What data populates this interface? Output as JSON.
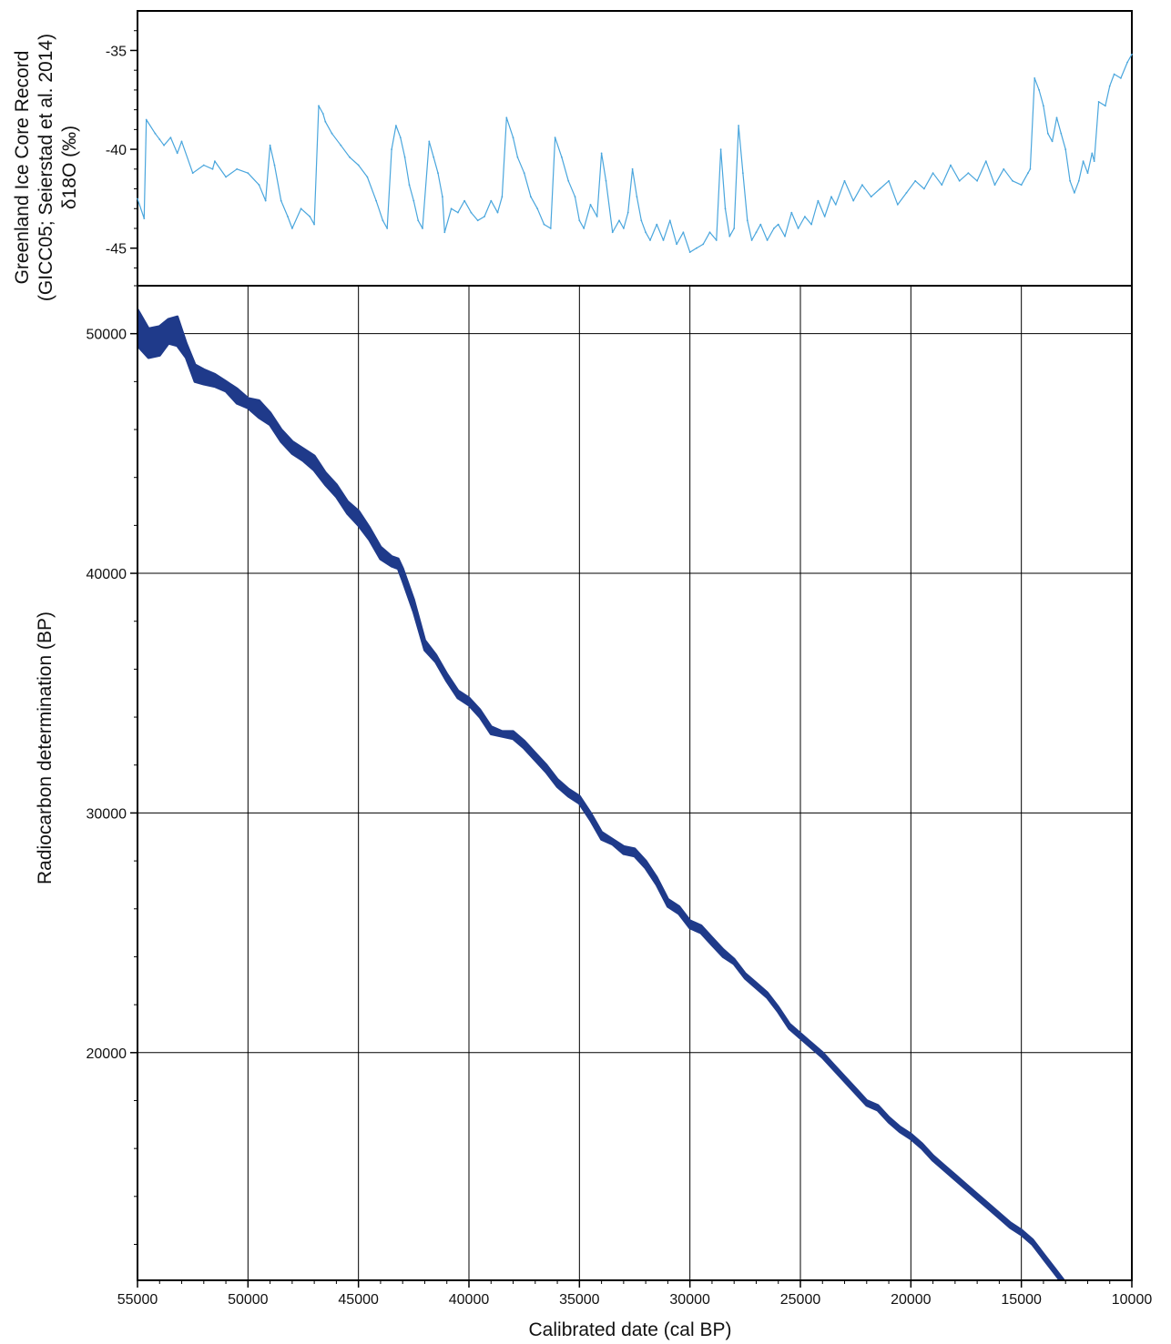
{
  "colors": {
    "ice_core_line": "#4aa6dd",
    "calibration_band": "#1f3a8a",
    "frame": "#000000",
    "grid": "#000000"
  },
  "chart_data": [
    {
      "type": "line",
      "panel": "top",
      "ylabel_lines": [
        "Greenland Ice Core Record",
        "(GICC05; Seierstad et al. 2014)",
        "δ18O (‰)"
      ],
      "xlim": [
        55000,
        10000
      ],
      "ylim": [
        -46.9,
        -33.0
      ],
      "y_ticks": [
        -35,
        -40,
        -45
      ],
      "y_tick_labels": [
        "-35",
        "-40",
        "-45"
      ],
      "grid": false,
      "series": [
        {
          "x": [
            55000,
            54700,
            54600,
            54200,
            54000,
            53800,
            53500,
            53200,
            53000,
            52500,
            52000,
            51600,
            51500,
            51000,
            50500,
            50000,
            49500,
            49200,
            49000,
            48800,
            48500,
            48200,
            48000,
            47600,
            47200,
            47000,
            46800,
            46600,
            46500,
            46200,
            45800,
            45400,
            45000,
            44600,
            44200,
            43900,
            43700,
            43500,
            43300,
            43100,
            42900,
            42700,
            42500,
            42300,
            42100,
            41800,
            41600,
            41400,
            41200,
            41100,
            40800,
            40500,
            40200,
            39900,
            39600,
            39300,
            39000,
            38700,
            38500,
            38300,
            38000,
            37800,
            37500,
            37200,
            36900,
            36600,
            36300,
            36100,
            35800,
            35500,
            35200,
            35000,
            34800,
            34500,
            34200,
            34000,
            33800,
            33500,
            33200,
            33000,
            32800,
            32600,
            32400,
            32200,
            32000,
            31800,
            31500,
            31200,
            30900,
            30600,
            30300,
            30000,
            29700,
            29400,
            29100,
            28800,
            28600,
            28400,
            28200,
            28000,
            27800,
            27600,
            27400,
            27200,
            27000,
            26800,
            26500,
            26200,
            26000,
            25700,
            25400,
            25100,
            24800,
            24500,
            24200,
            23900,
            23600,
            23400,
            23000,
            22600,
            22200,
            21800,
            21400,
            21000,
            20600,
            20200,
            19800,
            19400,
            19000,
            18600,
            18200,
            17800,
            17400,
            17000,
            16600,
            16200,
            15800,
            15400,
            15000,
            14700,
            14600,
            14400,
            14200,
            14000,
            13800,
            13600,
            13400,
            13200,
            13000,
            12800,
            12600,
            12400,
            12200,
            12000,
            11800,
            11700,
            11500,
            11200,
            11000,
            10800,
            10500,
            10200,
            10000
          ],
          "values": [
            -42.5,
            -43.5,
            -38.5,
            -39.2,
            -39.5,
            -39.8,
            -39.4,
            -40.2,
            -39.6,
            -41.2,
            -40.8,
            -41.0,
            -40.6,
            -41.4,
            -41.0,
            -41.2,
            -41.8,
            -42.6,
            -39.8,
            -40.8,
            -42.6,
            -43.4,
            -44.0,
            -43.0,
            -43.4,
            -43.8,
            -37.8,
            -38.2,
            -38.6,
            -39.2,
            -39.8,
            -40.4,
            -40.8,
            -41.4,
            -42.6,
            -43.6,
            -44.0,
            -40.0,
            -38.8,
            -39.4,
            -40.4,
            -41.8,
            -42.6,
            -43.6,
            -44.0,
            -39.6,
            -40.4,
            -41.2,
            -42.4,
            -44.2,
            -43.0,
            -43.2,
            -42.6,
            -43.2,
            -43.6,
            -43.4,
            -42.6,
            -43.2,
            -42.4,
            -38.4,
            -39.4,
            -40.4,
            -41.2,
            -42.4,
            -43.0,
            -43.8,
            -44.0,
            -39.4,
            -40.4,
            -41.6,
            -42.4,
            -43.6,
            -44.0,
            -42.8,
            -43.4,
            -40.2,
            -41.6,
            -44.2,
            -43.6,
            -44.0,
            -43.2,
            -41.0,
            -42.4,
            -43.6,
            -44.2,
            -44.6,
            -43.8,
            -44.6,
            -43.6,
            -44.8,
            -44.2,
            -45.2,
            -45.0,
            -44.8,
            -44.2,
            -44.6,
            -40.0,
            -43.0,
            -44.4,
            -44.0,
            -38.8,
            -41.2,
            -43.6,
            -44.6,
            -44.2,
            -43.8,
            -44.6,
            -44.0,
            -43.8,
            -44.4,
            -43.2,
            -44.0,
            -43.4,
            -43.8,
            -42.6,
            -43.4,
            -42.4,
            -42.8,
            -41.6,
            -42.6,
            -41.8,
            -42.4,
            -42.0,
            -41.6,
            -42.8,
            -42.2,
            -41.6,
            -42.0,
            -41.2,
            -41.8,
            -40.8,
            -41.6,
            -41.2,
            -41.6,
            -40.6,
            -41.8,
            -41.0,
            -41.6,
            -41.8,
            -41.2,
            -41.0,
            -36.4,
            -37.0,
            -37.8,
            -39.2,
            -39.6,
            -38.4,
            -39.2,
            -40.0,
            -41.6,
            -42.2,
            -41.6,
            -40.6,
            -41.2,
            -40.2,
            -40.6,
            -37.6,
            -37.8,
            -36.8,
            -36.2,
            -36.4,
            -35.6,
            -35.2
          ]
        }
      ]
    },
    {
      "type": "area",
      "panel": "bottom",
      "xlabel": "Calibrated date (cal BP)",
      "ylabel": "Radiocarbon determination (BP)",
      "xlim": [
        55000,
        10000
      ],
      "ylim": [
        10500,
        52000
      ],
      "x_ticks": [
        55000,
        50000,
        45000,
        40000,
        35000,
        30000,
        25000,
        20000,
        15000,
        10000
      ],
      "x_tick_labels": [
        "55000",
        "50000",
        "45000",
        "40000",
        "35000",
        "30000",
        "25000",
        "20000",
        "15000",
        "10000"
      ],
      "y_ticks": [
        50000,
        40000,
        30000,
        20000
      ],
      "y_tick_labels": [
        "50000",
        "40000",
        "30000",
        "20000"
      ],
      "grid": true,
      "series": [
        {
          "x": [
            55000,
            54500,
            54000,
            53600,
            53200,
            52800,
            52400,
            52000,
            51500,
            51000,
            50500,
            50000,
            49500,
            49000,
            48500,
            48000,
            47500,
            47000,
            46500,
            46000,
            45500,
            45000,
            44500,
            44000,
            43500,
            43200,
            43000,
            42500,
            42000,
            41500,
            41000,
            40500,
            40000,
            39500,
            39000,
            38500,
            38000,
            37500,
            37000,
            36500,
            36000,
            35500,
            35000,
            34500,
            34000,
            33500,
            33000,
            32500,
            32000,
            31500,
            31000,
            30500,
            30000,
            29500,
            29000,
            28500,
            28000,
            27500,
            27000,
            26500,
            26000,
            25500,
            25000,
            24500,
            24000,
            23500,
            23000,
            22500,
            22000,
            21500,
            21000,
            20500,
            20000,
            19500,
            19000,
            18500,
            18000,
            17500,
            17000,
            16500,
            16000,
            15500,
            15000,
            14500,
            14000,
            13500,
            13000,
            12500,
            12000
          ],
          "y_upper": [
            51000,
            50200,
            50300,
            50600,
            50700,
            49600,
            48700,
            48500,
            48300,
            48000,
            47700,
            47300,
            47200,
            46700,
            46000,
            45500,
            45200,
            44900,
            44200,
            43700,
            43000,
            42600,
            41900,
            41100,
            40700,
            40600,
            40200,
            38900,
            37200,
            36600,
            35800,
            35100,
            34800,
            34300,
            33600,
            33400,
            33400,
            33000,
            32500,
            32000,
            31400,
            31000,
            30700,
            30000,
            29200,
            28900,
            28600,
            28500,
            28000,
            27300,
            26400,
            26100,
            25500,
            25300,
            24800,
            24300,
            23900,
            23300,
            22900,
            22500,
            21900,
            21200,
            20800,
            20400,
            20000,
            19500,
            19000,
            18500,
            18000,
            17800,
            17300,
            16900,
            16600,
            16200,
            15700,
            15300,
            14900,
            14500,
            14100,
            13700,
            13300,
            12900,
            12600,
            12200,
            11600,
            11000,
            10400,
            9800,
            9300
          ],
          "y_lower": [
            49500,
            49000,
            49100,
            49600,
            49500,
            49000,
            48000,
            47900,
            47800,
            47600,
            47100,
            46900,
            46500,
            46200,
            45500,
            45000,
            44700,
            44300,
            43700,
            43200,
            42500,
            42000,
            41400,
            40600,
            40300,
            40200,
            39700,
            38400,
            36800,
            36300,
            35500,
            34800,
            34500,
            34000,
            33300,
            33200,
            33100,
            32700,
            32200,
            31700,
            31100,
            30700,
            30400,
            29700,
            28900,
            28700,
            28300,
            28200,
            27700,
            27000,
            26100,
            25800,
            25200,
            25000,
            24500,
            24000,
            23700,
            23100,
            22700,
            22300,
            21700,
            21000,
            20600,
            20200,
            19800,
            19300,
            18800,
            18300,
            17800,
            17600,
            17100,
            16700,
            16400,
            16000,
            15500,
            15100,
            14700,
            14300,
            13900,
            13500,
            13100,
            12700,
            12400,
            12000,
            11400,
            10800,
            10200,
            9600,
            9100
          ]
        }
      ]
    }
  ]
}
